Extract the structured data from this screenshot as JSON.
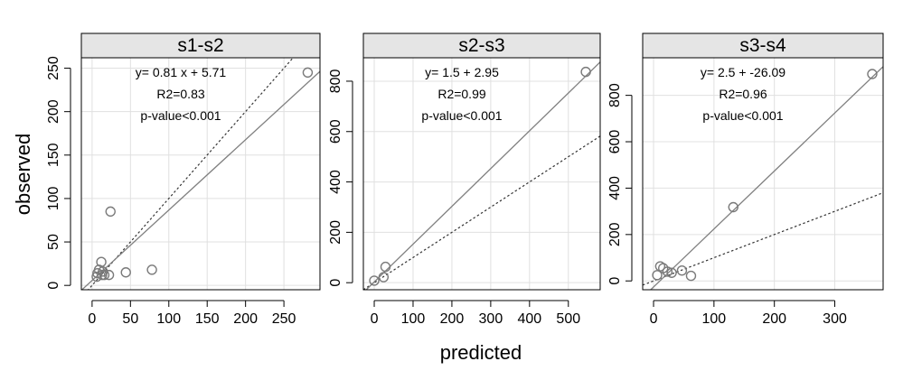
{
  "figure": {
    "xlabel": "predicted",
    "ylabel": "observed"
  },
  "chart_data": [
    {
      "type": "scatter",
      "title": "s1-s2",
      "xlim": [
        -14,
        297
      ],
      "ylim": [
        -5,
        262
      ],
      "xticks": [
        0,
        50,
        100,
        150,
        200,
        250
      ],
      "yticks": [
        0,
        50,
        100,
        150,
        200,
        250
      ],
      "grid": true,
      "points": [
        {
          "x": 6,
          "y": 10
        },
        {
          "x": 7,
          "y": 14
        },
        {
          "x": 9,
          "y": 18
        },
        {
          "x": 12,
          "y": 27
        },
        {
          "x": 13,
          "y": 12
        },
        {
          "x": 14,
          "y": 16
        },
        {
          "x": 16,
          "y": 12
        },
        {
          "x": 22,
          "y": 12
        },
        {
          "x": 24,
          "y": 85
        },
        {
          "x": 44,
          "y": 15
        },
        {
          "x": 78,
          "y": 18
        },
        {
          "x": 281,
          "y": 245
        }
      ],
      "fit_line": {
        "slope": 0.81,
        "intercept": 5.71
      },
      "identity_line": true,
      "annotations": [
        "y= 0.81 x + 5.71",
        "R2=0.83",
        "p-value<0.001"
      ]
    },
    {
      "type": "scatter",
      "title": "s2-s3",
      "xlim": [
        -28,
        582
      ],
      "ylim": [
        -28,
        893
      ],
      "xticks": [
        0,
        100,
        200,
        300,
        400,
        500
      ],
      "yticks": [
        0,
        200,
        400,
        600,
        800
      ],
      "grid": true,
      "points": [
        {
          "x": 0,
          "y": 8
        },
        {
          "x": 24,
          "y": 22
        },
        {
          "x": 29,
          "y": 63
        },
        {
          "x": 545,
          "y": 837
        }
      ],
      "fit_line": {
        "slope": 1.5,
        "intercept": 2.95
      },
      "identity_line": true,
      "annotations": [
        "y= 1.5 + 2.95",
        "R2=0.99",
        "p-value<0.001"
      ]
    },
    {
      "type": "scatter",
      "title": "s3-s4",
      "xlim": [
        -18,
        380
      ],
      "ylim": [
        -38,
        962
      ],
      "xticks": [
        0,
        100,
        200,
        300
      ],
      "yticks": [
        0,
        200,
        400,
        600,
        800
      ],
      "grid": true,
      "points": [
        {
          "x": 6,
          "y": 25
        },
        {
          "x": 11,
          "y": 63
        },
        {
          "x": 16,
          "y": 55
        },
        {
          "x": 23,
          "y": 40
        },
        {
          "x": 30,
          "y": 35
        },
        {
          "x": 47,
          "y": 45
        },
        {
          "x": 62,
          "y": 22
        },
        {
          "x": 132,
          "y": 318
        },
        {
          "x": 362,
          "y": 892
        }
      ],
      "fit_line": {
        "slope": 2.5,
        "intercept": -26.09
      },
      "identity_line": true,
      "annotations": [
        "y= 2.5 + -26.09",
        "R2=0.96",
        "p-value<0.001"
      ]
    }
  ]
}
